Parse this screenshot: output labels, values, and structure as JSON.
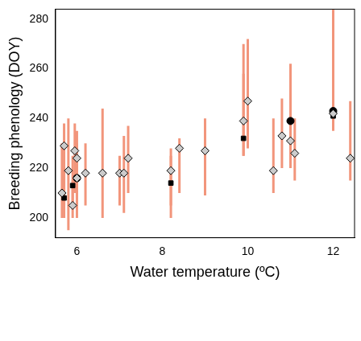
{
  "chart_data": {
    "type": "scatter",
    "x_label": "Water temperature (ºC)",
    "y_label": "Breeding phenology (DOY)",
    "xlim": [
      5.5,
      12.5
    ],
    "xticks": [
      6,
      8,
      10,
      12
    ],
    "ylim": [
      192,
      284
    ],
    "yticks": [
      200,
      220,
      240,
      260,
      280
    ],
    "grid": false,
    "error_bar_color": "#f2957b",
    "series": [
      {
        "marker": "diamond",
        "color": "#cccccc",
        "x": [
          5.7,
          5.65,
          5.8,
          5.9,
          5.95,
          6.0,
          6.0,
          6.2,
          6.6,
          7.0,
          7.1,
          7.2,
          8.2,
          8.4,
          9.0,
          9.9,
          10.0,
          10.6,
          10.8,
          11.0,
          11.1,
          12.0,
          12.4
        ],
        "values": [
          229,
          210,
          219,
          205,
          227,
          224,
          216,
          218,
          218,
          218,
          218,
          224,
          219,
          228,
          227,
          239,
          247,
          219,
          233,
          231,
          226,
          242,
          224
        ],
        "lower": [
          205,
          200,
          195,
          200,
          210,
          205,
          200,
          205,
          200,
          205,
          202,
          210,
          205,
          210,
          209,
          225,
          228,
          210,
          220,
          220,
          215,
          235,
          215
        ],
        "upper": [
          238,
          230,
          240,
          215,
          238,
          235,
          230,
          230,
          244,
          225,
          233,
          237,
          228,
          232,
          240,
          270,
          272,
          240,
          248,
          250,
          240,
          284,
          247
        ]
      },
      {
        "marker": "square",
        "color": "#000000",
        "x": [
          5.7,
          5.9,
          8.2,
          9.9,
          12.0
        ],
        "values": [
          208,
          213,
          214,
          232,
          241
        ],
        "lower": [
          200,
          205,
          200,
          225,
          238
        ],
        "upper": [
          220,
          225,
          225,
          258,
          245
        ]
      },
      {
        "marker": "circle",
        "color": "#000000",
        "x": [
          6.0,
          11.0,
          12.0
        ],
        "values": [
          216,
          239,
          243
        ],
        "lower": [
          208,
          225,
          240
        ],
        "upper": [
          225,
          262,
          280
        ]
      }
    ]
  }
}
